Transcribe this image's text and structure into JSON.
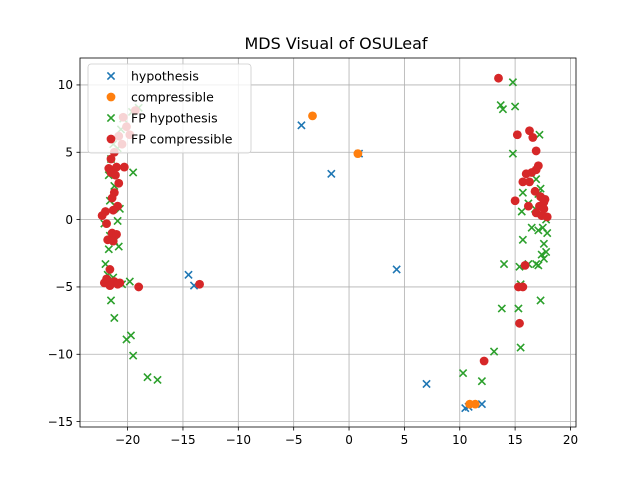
{
  "chart_data": {
    "type": "scatter",
    "title": "MDS Visual of OSULeaf",
    "xlabel": "",
    "ylabel": "",
    "xlim": [
      -24.3,
      20.5
    ],
    "ylim": [
      -15.4,
      12.0
    ],
    "xticks": [
      -20,
      -15,
      -10,
      -5,
      0,
      5,
      10,
      15,
      20
    ],
    "yticks": [
      -15,
      -10,
      -5,
      0,
      5,
      10
    ],
    "grid": true,
    "legend_position": "top-left",
    "series": [
      {
        "name": "hypothesis",
        "marker": "x",
        "color": "#1f77b4",
        "points": [
          [
            -4.3,
            7.0
          ],
          [
            -1.6,
            3.4
          ],
          [
            0.9,
            4.9
          ],
          [
            4.3,
            -3.7
          ],
          [
            -14.5,
            -4.1
          ],
          [
            -14.0,
            -4.9
          ],
          [
            7.0,
            -12.2
          ],
          [
            10.5,
            -14.0
          ],
          [
            10.8,
            -13.9
          ],
          [
            12.0,
            -13.7
          ]
        ]
      },
      {
        "name": "compressible",
        "marker": "o",
        "color": "#ff7f0e",
        "points": [
          [
            -3.3,
            7.7
          ],
          [
            0.8,
            4.9
          ],
          [
            10.9,
            -13.7
          ],
          [
            11.4,
            -13.7
          ]
        ]
      },
      {
        "name": "FP hypothesis",
        "marker": "x",
        "color": "#2ca02c",
        "points": [
          [
            -19.0,
            8.3
          ],
          [
            -19.6,
            8.0
          ],
          [
            -20.4,
            7.5
          ],
          [
            -20.6,
            6.7
          ],
          [
            -20.9,
            5.3
          ],
          [
            -21.3,
            5.6
          ],
          [
            -21.5,
            4.5
          ],
          [
            -21.7,
            3.3
          ],
          [
            -21.2,
            2.5
          ],
          [
            -19.5,
            3.5
          ],
          [
            -21.6,
            1.4
          ],
          [
            -21.1,
            1.0
          ],
          [
            -20.7,
            0.8
          ],
          [
            -20.9,
            -0.1
          ],
          [
            -22.1,
            -0.3
          ],
          [
            -21.6,
            -1.2
          ],
          [
            -21.2,
            -1.6
          ],
          [
            -21.7,
            -2.2
          ],
          [
            -20.8,
            -2.0
          ],
          [
            -22.0,
            -3.3
          ],
          [
            -21.8,
            -4.1
          ],
          [
            -21.3,
            -4.3
          ],
          [
            -20.5,
            -4.8
          ],
          [
            -19.8,
            -4.6
          ],
          [
            -21.5,
            -6.0
          ],
          [
            -21.2,
            -7.3
          ],
          [
            -19.7,
            -8.6
          ],
          [
            -20.1,
            -8.9
          ],
          [
            -19.5,
            -10.1
          ],
          [
            -18.2,
            -11.7
          ],
          [
            -17.3,
            -11.9
          ],
          [
            14.8,
            10.2
          ],
          [
            13.7,
            8.5
          ],
          [
            13.9,
            8.2
          ],
          [
            15.0,
            8.4
          ],
          [
            14.8,
            4.9
          ],
          [
            17.2,
            6.3
          ],
          [
            15.7,
            2.0
          ],
          [
            16.2,
            1.2
          ],
          [
            15.6,
            0.6
          ],
          [
            16.8,
            0.8
          ],
          [
            17.1,
            1.9
          ],
          [
            17.6,
            1.5
          ],
          [
            16.9,
            3.0
          ],
          [
            17.3,
            2.3
          ],
          [
            17.8,
            0.0
          ],
          [
            17.5,
            -0.6
          ],
          [
            17.9,
            -1.0
          ],
          [
            17.1,
            -0.8
          ],
          [
            16.5,
            -0.6
          ],
          [
            17.6,
            -1.8
          ],
          [
            17.8,
            -2.4
          ],
          [
            17.4,
            -2.6
          ],
          [
            17.6,
            -2.9
          ],
          [
            16.9,
            -3.3
          ],
          [
            17.1,
            -3.4
          ],
          [
            16.2,
            -3.3
          ],
          [
            15.7,
            -1.5
          ],
          [
            15.4,
            -3.5
          ],
          [
            14.0,
            -3.3
          ],
          [
            15.5,
            -4.8
          ],
          [
            17.3,
            -6.0
          ],
          [
            15.3,
            -6.6
          ],
          [
            13.8,
            -6.6
          ],
          [
            15.5,
            -9.5
          ],
          [
            13.1,
            -9.8
          ],
          [
            10.3,
            -11.4
          ],
          [
            12.0,
            -12.0
          ]
        ]
      },
      {
        "name": "FP compressible",
        "marker": "o",
        "color": "#d62728",
        "points": [
          [
            -19.3,
            8.1
          ],
          [
            -20.4,
            7.6
          ],
          [
            -20.1,
            6.9
          ],
          [
            -20.8,
            6.2
          ],
          [
            -19.8,
            6.3
          ],
          [
            -20.5,
            5.6
          ],
          [
            -21.2,
            5.0
          ],
          [
            -21.5,
            4.5
          ],
          [
            -21.7,
            3.8
          ],
          [
            -21.0,
            3.9
          ],
          [
            -20.3,
            3.9
          ],
          [
            -21.5,
            3.5
          ],
          [
            -21.1,
            3.3
          ],
          [
            -20.8,
            2.7
          ],
          [
            -21.2,
            2.0
          ],
          [
            -21.4,
            1.6
          ],
          [
            -20.9,
            1.0
          ],
          [
            -21.3,
            0.7
          ],
          [
            -22.0,
            0.6
          ],
          [
            -22.3,
            0.3
          ],
          [
            -21.9,
            -0.3
          ],
          [
            -21.4,
            -1.0
          ],
          [
            -21.0,
            -1.1
          ],
          [
            -21.8,
            -1.5
          ],
          [
            -21.3,
            -1.6
          ],
          [
            -21.6,
            -3.7
          ],
          [
            -21.9,
            -4.4
          ],
          [
            -21.2,
            -4.6
          ],
          [
            -20.7,
            -4.7
          ],
          [
            -22.1,
            -4.7
          ],
          [
            -21.6,
            -4.9
          ],
          [
            -20.9,
            -4.8
          ],
          [
            -19.0,
            -5.0
          ],
          [
            -13.5,
            -4.8
          ],
          [
            13.5,
            10.5
          ],
          [
            15.2,
            6.3
          ],
          [
            16.3,
            6.6
          ],
          [
            16.6,
            6.1
          ],
          [
            16.9,
            5.1
          ],
          [
            17.1,
            4.0
          ],
          [
            16.9,
            3.7
          ],
          [
            16.5,
            3.5
          ],
          [
            16.0,
            3.4
          ],
          [
            15.7,
            2.8
          ],
          [
            16.3,
            2.8
          ],
          [
            16.8,
            2.1
          ],
          [
            17.3,
            1.7
          ],
          [
            17.7,
            1.5
          ],
          [
            17.6,
            1.3
          ],
          [
            17.2,
            1.0
          ],
          [
            17.6,
            0.8
          ],
          [
            16.9,
            0.5
          ],
          [
            17.4,
            0.3
          ],
          [
            17.9,
            0.2
          ],
          [
            15.0,
            1.4
          ],
          [
            16.2,
            1.0
          ],
          [
            15.9,
            -3.4
          ],
          [
            15.3,
            -5.0
          ],
          [
            15.7,
            -5.0
          ],
          [
            15.4,
            -7.7
          ],
          [
            12.2,
            -10.5
          ]
        ]
      }
    ]
  }
}
